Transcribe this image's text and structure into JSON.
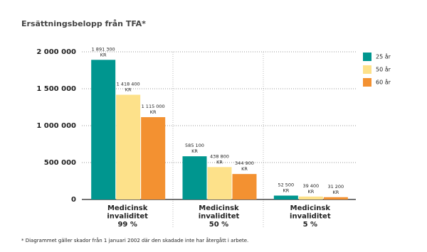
{
  "chart_data": {
    "type": "bar",
    "title": "Ersättningsbelopp från TFA*",
    "footnote": "* Diagrammet gäller skador från 1 januari 2002 där den skadade inte har återgått i arbete.",
    "categories": [
      "Medicinsk\ninvaliditet\n99 %",
      "Medicinsk\ninvaliditet\n50 %",
      "Medicinsk\ninvaliditet\n5 %"
    ],
    "series": [
      {
        "name": "25 år",
        "color": "#00968f",
        "values": [
          1891300,
          585100,
          52500
        ],
        "value_labels": [
          "1 891 300\nKR",
          "585 100\nKR",
          "52 500\nKR"
        ]
      },
      {
        "name": "50 år",
        "color": "#fde18a",
        "values": [
          1418400,
          438800,
          39400
        ],
        "value_labels": [
          "1 418 400\nKR",
          "438 800\nKR",
          "39 400\nKR"
        ]
      },
      {
        "name": "60 år",
        "color": "#f39131",
        "values": [
          1115000,
          344900,
          31200
        ],
        "value_labels": [
          "1 115 000\nKR",
          "344 900\nKR",
          "31 200\nKR"
        ]
      }
    ],
    "ylim": [
      0,
      2000000
    ],
    "yticks": [
      0,
      {
        "value": 500000,
        "label": "500 000"
      },
      {
        "value": 1000000,
        "label": "1 000 000"
      },
      {
        "value": 1500000,
        "label": "1 500 000"
      },
      {
        "value": 2000000,
        "label": "2 000 000"
      }
    ],
    "grid": true,
    "legend": "right"
  }
}
